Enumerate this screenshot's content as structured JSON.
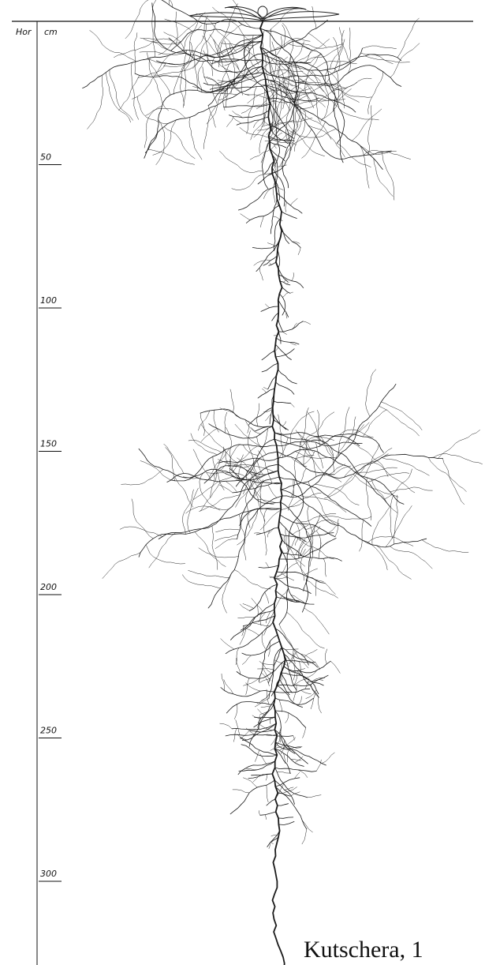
{
  "header": {
    "horizon": "Hor",
    "unit": "cm"
  },
  "scale": {
    "ticks": [
      50,
      100,
      150,
      200,
      250,
      300
    ]
  },
  "caption": "Kutschera, 1"
}
